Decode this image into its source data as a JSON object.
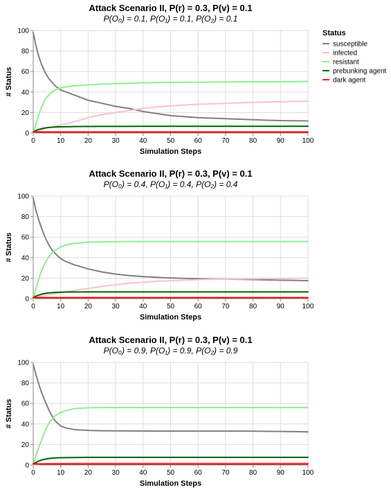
{
  "legend": {
    "title": "Status",
    "items": [
      {
        "key": "susceptible",
        "label": "susceptible",
        "color": "#808080"
      },
      {
        "key": "infected",
        "label": "infected",
        "color": "#ffc0cb"
      },
      {
        "key": "resistant",
        "label": "resistant",
        "color": "#90ee90"
      },
      {
        "key": "prebunking",
        "label": "prebunking agent",
        "color": "#006400"
      },
      {
        "key": "dark",
        "label": "dark agent",
        "color": "#ff0000"
      }
    ]
  },
  "chart_data": [
    {
      "type": "line",
      "title": "Attack Scenario II, P(r) = 0.3, P(v) = 0.1",
      "subtitle": "P(O₀) = 0.1, P(O₁) = 0.1, P(O₂) = 0.1",
      "xlabel": "Simulation Steps",
      "ylabel": "# Status",
      "xlim": [
        0,
        100
      ],
      "ylim": [
        0,
        100
      ],
      "xticks": [
        0,
        10,
        20,
        30,
        40,
        50,
        60,
        70,
        80,
        90,
        100
      ],
      "yticks": [
        0,
        20,
        40,
        60,
        80,
        100
      ],
      "grid": true,
      "legend_position": "top-right",
      "x": [
        0,
        1,
        2,
        3,
        4,
        5,
        6,
        7,
        8,
        10,
        12,
        15,
        20,
        25,
        30,
        35,
        40,
        45,
        50,
        55,
        60,
        65,
        70,
        75,
        80,
        85,
        90,
        95,
        100
      ],
      "series": [
        {
          "key": "susceptible",
          "values": [
            98,
            85,
            75,
            67,
            61,
            56,
            52,
            49,
            46,
            42,
            40,
            37,
            32,
            29,
            26,
            24,
            21,
            19,
            17,
            16,
            15,
            14.5,
            14,
            13.5,
            13,
            12.5,
            12.2,
            12,
            11.8
          ]
        },
        {
          "key": "infected",
          "values": [
            0,
            1,
            2,
            3,
            4,
            5,
            5.5,
            6,
            6.5,
            8,
            9,
            11,
            15,
            18,
            20,
            22,
            24,
            25.5,
            26.5,
            27.3,
            28,
            28.5,
            29,
            29.5,
            30,
            30.3,
            30.5,
            30.8,
            31
          ]
        },
        {
          "key": "resistant",
          "values": [
            0,
            9,
            18,
            25,
            31,
            35,
            38,
            40.5,
            42,
            44,
            45,
            46,
            47,
            47.7,
            48.2,
            48.6,
            49,
            49.2,
            49.4,
            49.5,
            49.6,
            49.7,
            49.8,
            49.9,
            50,
            50,
            50.1,
            50.2,
            50.3
          ]
        },
        {
          "key": "prebunking",
          "values": [
            1,
            2.5,
            3.5,
            4.2,
            4.8,
            5.2,
            5.5,
            5.7,
            5.9,
            6.1,
            6.2,
            6.3,
            6.4,
            6.5,
            6.5,
            6.5,
            6.6,
            6.6,
            6.6,
            6.6,
            6.6,
            6.6,
            6.6,
            6.6,
            6.6,
            6.6,
            6.6,
            6.6,
            6.6
          ]
        },
        {
          "key": "dark",
          "values": [
            1,
            1,
            1,
            1,
            1,
            1,
            1,
            1,
            1,
            1,
            1,
            1,
            1,
            1,
            1,
            1,
            1,
            1,
            1,
            1,
            1,
            1,
            1,
            1,
            1,
            1,
            1,
            1,
            1
          ]
        }
      ]
    },
    {
      "type": "line",
      "title": "Attack Scenario II, P(r) = 0.3, P(v) = 0.1",
      "subtitle": "P(O₀) = 0.4, P(O₁) = 0.4, P(O₂) = 0.4",
      "xlabel": "Simulation Steps",
      "ylabel": "# Status",
      "xlim": [
        0,
        100
      ],
      "ylim": [
        0,
        100
      ],
      "xticks": [
        0,
        10,
        20,
        30,
        40,
        50,
        60,
        70,
        80,
        90,
        100
      ],
      "yticks": [
        0,
        20,
        40,
        60,
        80,
        100
      ],
      "grid": true,
      "x": [
        0,
        1,
        2,
        3,
        4,
        5,
        6,
        7,
        8,
        10,
        12,
        15,
        20,
        25,
        30,
        35,
        40,
        45,
        50,
        55,
        60,
        65,
        70,
        75,
        80,
        85,
        90,
        95,
        100
      ],
      "series": [
        {
          "key": "susceptible",
          "values": [
            98,
            86,
            77,
            69,
            62,
            56,
            51,
            47,
            44,
            39,
            36,
            33,
            29,
            26,
            24,
            22.5,
            21.5,
            20.8,
            20.2,
            19.8,
            19.5,
            19.2,
            19,
            18.8,
            18.6,
            18.3,
            18,
            17.8,
            17.5
          ]
        },
        {
          "key": "infected",
          "values": [
            0,
            1,
            2,
            2.5,
            3,
            3.5,
            4,
            4.5,
            5,
            6,
            7,
            8,
            10,
            12,
            13.5,
            15,
            16,
            17,
            17.5,
            18,
            18.5,
            18.8,
            19,
            19.2,
            19.4,
            19.6,
            19.7,
            19.8,
            20
          ]
        },
        {
          "key": "resistant",
          "values": [
            0,
            10,
            19,
            27,
            33,
            38,
            42,
            45,
            47,
            50.5,
            52.5,
            54,
            55,
            55.4,
            55.6,
            55.7,
            55.7,
            55.7,
            55.7,
            55.7,
            55.7,
            55.7,
            55.7,
            55.7,
            55.7,
            55.7,
            55.7,
            55.7,
            55.7
          ]
        },
        {
          "key": "prebunking",
          "values": [
            1,
            2.5,
            3.5,
            4.3,
            5,
            5.4,
            5.7,
            5.9,
            6.1,
            6.3,
            6.4,
            6.5,
            6.6,
            6.6,
            6.6,
            6.6,
            6.6,
            6.6,
            6.6,
            6.6,
            6.6,
            6.6,
            6.6,
            6.6,
            6.6,
            6.6,
            6.6,
            6.6,
            6.6
          ]
        },
        {
          "key": "dark",
          "values": [
            1,
            1,
            1,
            1,
            1,
            1,
            1,
            1,
            1,
            1,
            1,
            1,
            1,
            1,
            1,
            1,
            1,
            1,
            1,
            1,
            1,
            1,
            1,
            1,
            1,
            1,
            1,
            1,
            1
          ]
        }
      ]
    },
    {
      "type": "line",
      "title": "Attack Scenario II, P(r) = 0.3, P(v) = 0.1",
      "subtitle": "P(O₀) = 0.9, P(O₁) = 0.9, P(O₂) = 0.9",
      "xlabel": "Simulation Steps",
      "ylabel": "# Status",
      "xlim": [
        0,
        100
      ],
      "ylim": [
        0,
        100
      ],
      "xticks": [
        0,
        10,
        20,
        30,
        40,
        50,
        60,
        70,
        80,
        90,
        100
      ],
      "yticks": [
        0,
        20,
        40,
        60,
        80,
        100
      ],
      "grid": true,
      "x": [
        0,
        1,
        2,
        3,
        4,
        5,
        6,
        7,
        8,
        10,
        12,
        15,
        20,
        25,
        30,
        35,
        40,
        45,
        50,
        55,
        60,
        65,
        70,
        75,
        80,
        85,
        90,
        95,
        100
      ],
      "series": [
        {
          "key": "susceptible",
          "values": [
            98,
            88,
            79,
            71,
            64,
            58,
            52,
            47,
            43,
            38,
            36,
            34.5,
            33.7,
            33.4,
            33.3,
            33.2,
            33.1,
            33,
            33,
            33,
            33,
            33,
            33,
            33,
            32.9,
            32.8,
            32.7,
            32.5,
            32.3
          ]
        },
        {
          "key": "infected",
          "values": [
            0,
            0.5,
            0.8,
            1,
            1.2,
            1.3,
            1.4,
            1.5,
            1.6,
            1.8,
            1.9,
            2,
            2,
            2,
            2,
            2,
            2,
            2,
            2,
            2,
            2,
            2,
            2,
            2,
            2,
            2,
            2,
            2,
            2
          ]
        },
        {
          "key": "resistant",
          "values": [
            0,
            9,
            17,
            24,
            31,
            37,
            42,
            45,
            48,
            51,
            53,
            55,
            55.8,
            56,
            56,
            56,
            56,
            56,
            56,
            56,
            56,
            56,
            56,
            56,
            56,
            56,
            56,
            56,
            56
          ]
        },
        {
          "key": "prebunking",
          "values": [
            1,
            2.5,
            3.8,
            4.8,
            5.5,
            6,
            6.4,
            6.7,
            6.9,
            7.1,
            7.2,
            7.3,
            7.4,
            7.4,
            7.4,
            7.4,
            7.4,
            7.4,
            7.4,
            7.4,
            7.4,
            7.4,
            7.4,
            7.4,
            7.4,
            7.4,
            7.4,
            7.4,
            7.4
          ]
        },
        {
          "key": "dark",
          "values": [
            1,
            1,
            1,
            1,
            1,
            1,
            1,
            1,
            1,
            1,
            1,
            1,
            1,
            1,
            1,
            1,
            1,
            1,
            1,
            1,
            1,
            1,
            1,
            1,
            1,
            1,
            1,
            1,
            1
          ]
        }
      ]
    }
  ]
}
